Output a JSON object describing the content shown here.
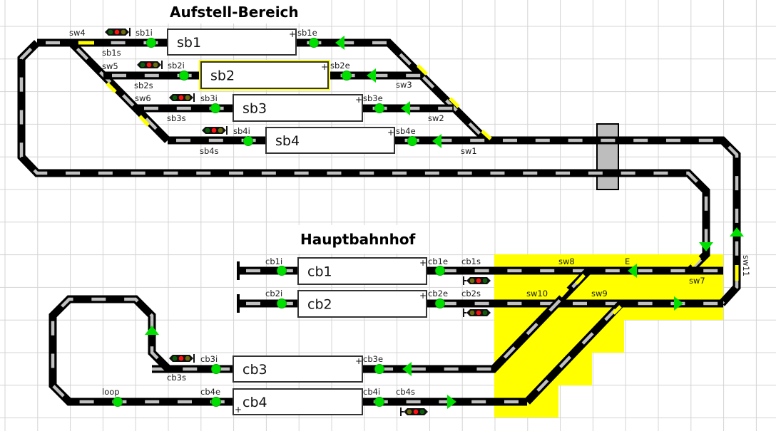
{
  "titles": {
    "upper": "Aufstell-Bereich",
    "lower": "Hauptbahnhof"
  },
  "colors": {
    "track": "#000000",
    "sleeper": "#c0c0c0",
    "sensor": "#00e000",
    "arrow": "#00e000",
    "switch_active": "#ffff00",
    "highlight": "#ffff00",
    "grid": "#d4d4d4"
  },
  "blocks": [
    {
      "name": "sb1",
      "plus": "+",
      "selected": false
    },
    {
      "name": "sb2",
      "plus": "+",
      "selected": true
    },
    {
      "name": "sb3",
      "plus": "+",
      "selected": false
    },
    {
      "name": "sb4",
      "plus": "+",
      "selected": false
    },
    {
      "name": "cb1",
      "plus": "+",
      "selected": false
    },
    {
      "name": "cb2",
      "plus": "+",
      "selected": false
    },
    {
      "name": "cb3",
      "plus": "+",
      "selected": false
    },
    {
      "name": "cb4",
      "plus": "+",
      "selected": false
    }
  ],
  "labels": [
    "sw4",
    "sb1s",
    "sb1i",
    "sb1e",
    "sw5",
    "sb2i",
    "sb2s",
    "sb2e",
    "sw3",
    "sw6",
    "sb3i",
    "sb3s",
    "sb3e",
    "sw2",
    "sb4i",
    "sb4s",
    "sb4e",
    "sw1",
    "cb1i",
    "cb1e",
    "cb1s",
    "sw8",
    "E",
    "sw7",
    "cb2i",
    "cb2e",
    "cb2s",
    "sw10",
    "sw9",
    "sw11",
    "cb3i",
    "cb3s",
    "cb3e",
    "loop",
    "cb4e",
    "cb4i",
    "cb4s"
  ],
  "icons": {
    "sensor": "sensor-dot-icon",
    "signal": "signal-lamp-icon",
    "arrow": "direction-arrow-icon",
    "buffer": "buffer-stop-icon",
    "crossing": "level-crossing-icon"
  }
}
